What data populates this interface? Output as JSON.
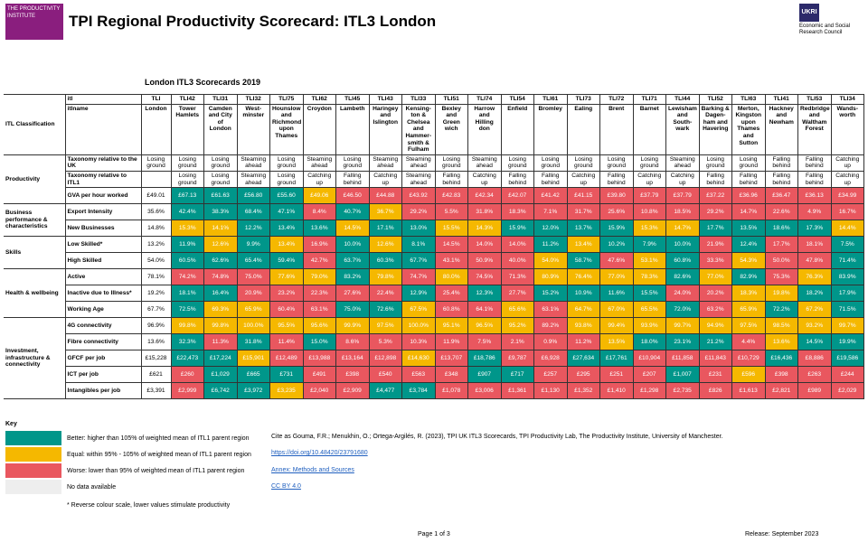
{
  "header": {
    "logo_text": "THE PRODUCTIVITY INSTITUTE",
    "title": "TPI Regional Productivity Scorecard: ITL3 London",
    "funder_logo": "UKRI",
    "funder": "Economic and Social Research Council"
  },
  "subtitle": "London ITL3 Scorecards 2019",
  "table": {
    "corner": "ITL Classification",
    "itl_label": "itl",
    "name_label": "itlname",
    "codes": [
      "TLI",
      "TLI42",
      "TLI31",
      "TLI32",
      "TLI75",
      "TLI62",
      "TLI45",
      "TLI43",
      "TLI33",
      "TLI51",
      "TLI74",
      "TLI54",
      "TLI61",
      "TLI73",
      "TLI72",
      "TLI71",
      "TLI44",
      "TLI52",
      "TLI63",
      "TLI41",
      "TLI53",
      "TLI34"
    ],
    "names": [
      "London",
      "Tower Hamlets",
      "Camden and City of London",
      "West-minster",
      "Hounslow and Richmond upon Thames",
      "Croydon",
      "Lambeth",
      "Haringey and Islington",
      "Kensing-ton & Chelsea and Hammer-smith & Fulham",
      "Bexley and Green wich",
      "Harrow and Hilling don",
      "Enfield",
      "Bromley",
      "Ealing",
      "Brent",
      "Barnet",
      "Lewisham and South-wark",
      "Barking & Dagen-ham and Havering",
      "Merton, Kingston upon Thames and Sutton",
      "Hackney and Newham",
      "Redbridge and Waltham Forest",
      "Wands-worth"
    ],
    "taxonomy_uk_label": "Taxonomy relative to the UK",
    "taxonomy_uk": [
      "Losing ground",
      "Losing ground",
      "Losing ground",
      "Steaming ahead",
      "Losing ground",
      "Steaming ahead",
      "Losing ground",
      "Steaming ahead",
      "Steaming ahead",
      "Losing ground",
      "Steaming ahead",
      "Losing ground",
      "Losing ground",
      "Losing ground",
      "Losing ground",
      "Losing ground",
      "Steaming ahead",
      "Losing ground",
      "Losing ground",
      "Falling behind",
      "Falling behind",
      "Catching up"
    ],
    "taxonomy_itl1_label": "Taxonomy relative to ITL1",
    "taxonomy_itl1": [
      null,
      "Losing ground",
      "Losing ground",
      "Steaming ahead",
      "Losing ground",
      "Catching up",
      "Falling behind",
      "Catching up",
      "Steaming ahead",
      "Falling behind",
      "Catching up",
      "Falling behind",
      "Falling behind",
      "Catching up",
      "Falling behind",
      "Catching up",
      "Catching up",
      "Falling behind",
      "Falling behind",
      "Falling behind",
      "Falling behind",
      "Catching up"
    ],
    "groups": [
      {
        "label": "Productivity",
        "metrics": [
          {
            "name": "GVA per hour worked",
            "values": [
              "£49.01",
              "£67.13",
              "£61.63",
              "£56.80",
              "£55.60",
              "£49.06",
              "£46.50",
              "£44.88",
              "£43.92",
              "£42.83",
              "£42.34",
              "£42.07",
              "£41.42",
              "£41.15",
              "£39.80",
              "£37.79",
              "£37.79",
              "£37.22",
              "£36.96",
              "£36.47",
              "£36.13",
              "£34.99"
            ],
            "levels": [
              null,
              0,
              0,
              0,
              0,
              1,
              2,
              2,
              2,
              2,
              2,
              2,
              2,
              2,
              2,
              2,
              2,
              2,
              2,
              2,
              2,
              2
            ]
          }
        ]
      },
      {
        "label": "Business performance & characteristics",
        "metrics": [
          {
            "name": "Export Intensity",
            "values": [
              "35.6%",
              "42.4%",
              "38.3%",
              "68.4%",
              "47.1%",
              "8.4%",
              "40.7%",
              "36.7%",
              "29.2%",
              "5.5%",
              "31.8%",
              "18.3%",
              "7.1%",
              "31.7%",
              "25.6%",
              "10.8%",
              "18.5%",
              "29.2%",
              "14.7%",
              "22.6%",
              "4.9%",
              "16.7%"
            ],
            "levels": [
              null,
              0,
              0,
              0,
              0,
              2,
              0,
              1,
              2,
              2,
              2,
              2,
              2,
              2,
              2,
              2,
              2,
              2,
              2,
              2,
              2,
              2
            ]
          },
          {
            "name": "New Businesses",
            "values": [
              "14.8%",
              "15.3%",
              "14.1%",
              "12.2%",
              "13.4%",
              "13.6%",
              "14.5%",
              "17.1%",
              "13.0%",
              "15.5%",
              "14.3%",
              "15.9%",
              "12.0%",
              "13.7%",
              "15.9%",
              "15.3%",
              "14.7%",
              "17.7%",
              "13.5%",
              "18.6%",
              "17.3%",
              "14.4%"
            ],
            "levels": [
              null,
              1,
              1,
              0,
              0,
              0,
              1,
              0,
              0,
              1,
              1,
              0,
              0,
              0,
              0,
              1,
              1,
              0,
              0,
              0,
              0,
              1
            ]
          }
        ]
      },
      {
        "label": "Skills",
        "metrics": [
          {
            "name": "Low Skilled*",
            "values": [
              "13.2%",
              "11.9%",
              "12.6%",
              "9.9%",
              "13.4%",
              "16.9%",
              "10.0%",
              "12.6%",
              "8.1%",
              "14.5%",
              "14.0%",
              "14.0%",
              "11.2%",
              "13.4%",
              "10.2%",
              "7.9%",
              "10.0%",
              "21.9%",
              "12.4%",
              "17.7%",
              "18.1%",
              "7.5%"
            ],
            "levels": [
              null,
              0,
              1,
              0,
              1,
              2,
              0,
              1,
              0,
              2,
              2,
              2,
              0,
              1,
              0,
              0,
              0,
              2,
              0,
              2,
              2,
              0
            ]
          },
          {
            "name": "High Skilled",
            "values": [
              "54.0%",
              "60.5%",
              "62.6%",
              "65.4%",
              "59.4%",
              "42.7%",
              "63.7%",
              "60.3%",
              "67.7%",
              "43.1%",
              "50.9%",
              "40.0%",
              "54.0%",
              "58.7%",
              "47.6%",
              "53.1%",
              "60.8%",
              "33.3%",
              "54.3%",
              "50.0%",
              "47.8%",
              "71.4%"
            ],
            "levels": [
              null,
              0,
              0,
              0,
              0,
              2,
              0,
              0,
              0,
              2,
              2,
              2,
              1,
              0,
              2,
              1,
              0,
              2,
              1,
              2,
              2,
              0
            ]
          }
        ]
      },
      {
        "label": "Health & wellbeing",
        "metrics": [
          {
            "name": "Active",
            "values": [
              "78.1%",
              "74.2%",
              "74.8%",
              "75.0%",
              "77.6%",
              "79.0%",
              "83.2%",
              "79.8%",
              "74.7%",
              "80.0%",
              "74.5%",
              "71.3%",
              "80.9%",
              "76.4%",
              "77.0%",
              "78.3%",
              "82.6%",
              "77.0%",
              "82.9%",
              "75.3%",
              "76.3%",
              "83.9%"
            ],
            "levels": [
              null,
              2,
              2,
              2,
              1,
              1,
              0,
              1,
              2,
              1,
              2,
              2,
              1,
              1,
              1,
              1,
              0,
              1,
              0,
              2,
              1,
              0
            ]
          },
          {
            "name": "Inactive due to Illness*",
            "values": [
              "19.2%",
              "18.1%",
              "16.4%",
              "20.9%",
              "23.2%",
              "22.3%",
              "27.6%",
              "22.4%",
              "12.9%",
              "25.4%",
              "12.3%",
              "27.7%",
              "15.2%",
              "10.9%",
              "11.6%",
              "15.5%",
              "24.0%",
              "20.2%",
              "18.3%",
              "19.8%",
              "18.2%",
              "17.9%"
            ],
            "levels": [
              null,
              0,
              0,
              2,
              2,
              2,
              2,
              2,
              0,
              2,
              0,
              2,
              0,
              0,
              0,
              0,
              2,
              2,
              1,
              1,
              0,
              0
            ]
          },
          {
            "name": "Working Age",
            "values": [
              "67.7%",
              "72.5%",
              "69.3%",
              "65.9%",
              "60.4%",
              "63.1%",
              "75.0%",
              "72.6%",
              "67.5%",
              "60.8%",
              "64.1%",
              "65.6%",
              "63.1%",
              "64.7%",
              "67.0%",
              "65.5%",
              "72.0%",
              "63.2%",
              "65.9%",
              "72.2%",
              "67.2%",
              "71.5%"
            ],
            "levels": [
              null,
              0,
              1,
              1,
              2,
              2,
              0,
              0,
              1,
              2,
              2,
              1,
              2,
              1,
              1,
              1,
              0,
              2,
              1,
              0,
              1,
              0
            ]
          }
        ]
      },
      {
        "label": "Investment, infrastructure & connectivity",
        "metrics": [
          {
            "name": "4G connectivity",
            "values": [
              "96.9%",
              "99.8%",
              "99.8%",
              "100.0%",
              "95.5%",
              "95.6%",
              "99.9%",
              "97.5%",
              "100.0%",
              "95.1%",
              "96.5%",
              "95.2%",
              "89.2%",
              "93.8%",
              "99.4%",
              "93.9%",
              "99.7%",
              "94.9%",
              "97.5%",
              "98.5%",
              "93.2%",
              "99.7%"
            ],
            "levels": [
              null,
              1,
              1,
              1,
              1,
              1,
              1,
              1,
              1,
              1,
              1,
              1,
              2,
              1,
              1,
              1,
              1,
              1,
              1,
              1,
              1,
              1
            ]
          },
          {
            "name": "Fibre connectivity",
            "values": [
              "13.6%",
              "32.3%",
              "11.3%",
              "31.8%",
              "11.4%",
              "15.0%",
              "8.6%",
              "5.3%",
              "10.3%",
              "11.9%",
              "7.5%",
              "2.1%",
              "0.9%",
              "11.2%",
              "13.5%",
              "18.0%",
              "23.1%",
              "21.2%",
              "4.4%",
              "13.6%",
              "14.5%",
              "19.9%"
            ],
            "levels": [
              null,
              0,
              2,
              0,
              2,
              0,
              2,
              2,
              2,
              2,
              2,
              2,
              2,
              2,
              1,
              0,
              0,
              0,
              2,
              1,
              0,
              0
            ]
          },
          {
            "name": "GFCF per job",
            "values": [
              "£15,228",
              "£22,473",
              "£17,224",
              "£15,901",
              "£12,489",
              "£13,988",
              "£13,164",
              "£12,898",
              "£14,630",
              "£13,707",
              "£18,786",
              "£9,787",
              "£6,928",
              "£27,634",
              "£17,761",
              "£10,904",
              "£11,858",
              "£11,843",
              "£10,729",
              "£16,436",
              "£8,886",
              "£19,586"
            ],
            "levels": [
              null,
              0,
              0,
              1,
              2,
              2,
              2,
              2,
              1,
              2,
              0,
              2,
              2,
              0,
              0,
              2,
              2,
              2,
              2,
              0,
              2,
              0
            ]
          },
          {
            "name": "ICT per job",
            "values": [
              "£621",
              "£260",
              "£1,029",
              "£665",
              "£731",
              "£491",
              "£398",
              "£540",
              "£563",
              "£348",
              "£907",
              "£717",
              "£257",
              "£295",
              "£251",
              "£207",
              "£1,007",
              "£231",
              "£596",
              "£398",
              "£263",
              "£244"
            ],
            "levels": [
              null,
              2,
              0,
              0,
              0,
              2,
              2,
              2,
              2,
              2,
              0,
              0,
              2,
              2,
              2,
              2,
              0,
              2,
              1,
              2,
              2,
              2
            ]
          },
          {
            "name": "Intangibles per job",
            "values": [
              "£3,391",
              "£2,999",
              "£6,742",
              "£3,972",
              "£3,235",
              "£2,040",
              "£2,909",
              "£4,477",
              "£3,784",
              "£1,078",
              "£3,006",
              "£1,361",
              "£1,130",
              "£1,352",
              "£1,410",
              "£1,298",
              "£2,735",
              "£826",
              "£1,613",
              "£2,821",
              "£989",
              "£2,029"
            ],
            "levels": [
              null,
              2,
              0,
              0,
              1,
              2,
              2,
              0,
              0,
              2,
              2,
              2,
              2,
              2,
              2,
              2,
              2,
              2,
              2,
              2,
              2,
              2
            ]
          }
        ]
      }
    ]
  },
  "key": {
    "title": "Key",
    "items": [
      {
        "label": "Better: higher than 105% of weighted mean of ITL1 parent region",
        "color": "#00968a"
      },
      {
        "label": "Equal: within 95% - 105% of weighted mean of ITL1 parent region",
        "color": "#f5b800"
      },
      {
        "label": "Worse: lower than 95% of weighted mean of ITL1 parent region",
        "color": "#e9575f"
      },
      {
        "label": "No data available",
        "color": "#eeeeee"
      }
    ],
    "note": "* Reverse colour scale, lower values stimulate productivity"
  },
  "citation": {
    "text": "Cite as Gouma, F.R.; Menukhin, O.; Ortega-Argilés, R. (2023), TPI UK ITL3 Scorecards, TPI Productivity Lab, The Productivity Institute, University of Manchester.",
    "doi": "https://doi.org/10.48420/23791680",
    "annex": "Annex: Methods and Sources",
    "licence": "CC BY 4.0"
  },
  "footer": {
    "page": "Page 1 of 3",
    "release": "Release: September 2023"
  }
}
